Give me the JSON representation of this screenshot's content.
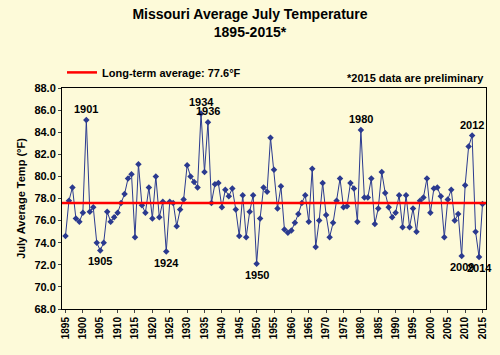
{
  "chart_data": {
    "type": "line",
    "title": "Missouri Average July Temperature",
    "subtitle": "1895-2015*",
    "y_label": "July Average Temp (°F)",
    "note": "*2015 data are preliminary",
    "color": "#2b3a8f",
    "marker": "diamond",
    "line_style": "solid",
    "grid": false,
    "legend": "top-left",
    "x": [
      1895,
      1896,
      1897,
      1898,
      1899,
      1900,
      1901,
      1902,
      1903,
      1904,
      1905,
      1906,
      1907,
      1908,
      1909,
      1910,
      1911,
      1912,
      1913,
      1914,
      1915,
      1916,
      1917,
      1918,
      1919,
      1920,
      1921,
      1922,
      1923,
      1924,
      1925,
      1926,
      1927,
      1928,
      1929,
      1930,
      1931,
      1932,
      1933,
      1934,
      1935,
      1936,
      1937,
      1938,
      1939,
      1940,
      1941,
      1942,
      1943,
      1944,
      1945,
      1946,
      1947,
      1948,
      1949,
      1950,
      1951,
      1952,
      1953,
      1954,
      1955,
      1956,
      1957,
      1958,
      1959,
      1960,
      1961,
      1962,
      1963,
      1964,
      1965,
      1966,
      1967,
      1968,
      1969,
      1970,
      1971,
      1972,
      1973,
      1974,
      1975,
      1976,
      1977,
      1978,
      1979,
      1980,
      1981,
      1982,
      1983,
      1984,
      1985,
      1986,
      1987,
      1988,
      1989,
      1990,
      1991,
      1992,
      1993,
      1994,
      1995,
      1996,
      1997,
      1998,
      1999,
      2000,
      2001,
      2002,
      2003,
      2004,
      2005,
      2006,
      2007,
      2008,
      2009,
      2010,
      2011,
      2012,
      2013,
      2014,
      2015
    ],
    "values": [
      74.6,
      77.8,
      79.0,
      76.2,
      75.9,
      76.7,
      85.1,
      76.8,
      77.2,
      74.0,
      73.3,
      74.0,
      76.8,
      75.9,
      76.3,
      76.7,
      77.6,
      78.4,
      79.8,
      80.2,
      74.5,
      81.1,
      77.4,
      76.7,
      79.0,
      76.2,
      80.0,
      76.3,
      77.7,
      73.2,
      77.7,
      77.6,
      75.5,
      77.0,
      77.9,
      81.0,
      80.0,
      79.5,
      79.0,
      85.7,
      80.4,
      84.9,
      77.6,
      79.3,
      79.4,
      77.2,
      78.8,
      78.2,
      78.9,
      77.0,
      74.6,
      78.3,
      74.5,
      76.8,
      78.3,
      72.1,
      76.2,
      79.0,
      78.6,
      83.5,
      80.6,
      77.1,
      79.1,
      75.2,
      74.9,
      75.1,
      75.8,
      76.6,
      77.6,
      78.3,
      75.9,
      80.7,
      73.6,
      76.0,
      79.4,
      76.5,
      74.5,
      75.8,
      77.8,
      79.8,
      77.2,
      77.3,
      79.4,
      78.9,
      75.9,
      84.2,
      78.1,
      78.1,
      79.8,
      75.7,
      77.1,
      80.4,
      78.5,
      77.2,
      76.3,
      76.7,
      78.3,
      75.4,
      78.3,
      75.4,
      77.1,
      75.0,
      77.8,
      78.1,
      79.8,
      76.7,
      78.9,
      79.0,
      78.2,
      74.5,
      77.9,
      78.8,
      76.0,
      76.6,
      72.8,
      79.2,
      82.7,
      83.7,
      75.0,
      72.7,
      77.5
    ],
    "xlim": [
      1894,
      2016
    ],
    "xticks": [
      1895,
      1900,
      1905,
      1910,
      1915,
      1920,
      1925,
      1930,
      1935,
      1940,
      1945,
      1950,
      1955,
      1960,
      1965,
      1970,
      1975,
      1980,
      1985,
      1990,
      1995,
      2000,
      2005,
      2010,
      2015
    ],
    "ylim": [
      68,
      88
    ],
    "yticks": [
      {
        "value": 68,
        "label": "68.0"
      },
      {
        "value": 70,
        "label": "70.0"
      },
      {
        "value": 72,
        "label": "72.0"
      },
      {
        "value": 74,
        "label": "74.0"
      },
      {
        "value": 76,
        "label": "76.0"
      },
      {
        "value": 78,
        "label": "78.0"
      },
      {
        "value": 80,
        "label": "80.0"
      },
      {
        "value": 82,
        "label": "82.0"
      },
      {
        "value": 84,
        "label": "84.0"
      },
      {
        "value": 86,
        "label": "86.0"
      },
      {
        "value": 88,
        "label": "88.0"
      }
    ],
    "average": {
      "name": "Long-term average: 77.6°F",
      "value": 77.6,
      "color": "#ff0000"
    },
    "annotations": [
      {
        "text": "1901",
        "x": 1901
      },
      {
        "text": "1905",
        "x": 1905
      },
      {
        "text": "1924",
        "x": 1924
      },
      {
        "text": "1934",
        "x": 1934
      },
      {
        "text": "1936",
        "x": 1936
      },
      {
        "text": "1950",
        "x": 1950
      },
      {
        "text": "1980",
        "x": 1980
      },
      {
        "text": "2009",
        "x": 2009
      },
      {
        "text": "2012",
        "x": 2012
      },
      {
        "text": "2014",
        "x": 2014
      }
    ]
  }
}
